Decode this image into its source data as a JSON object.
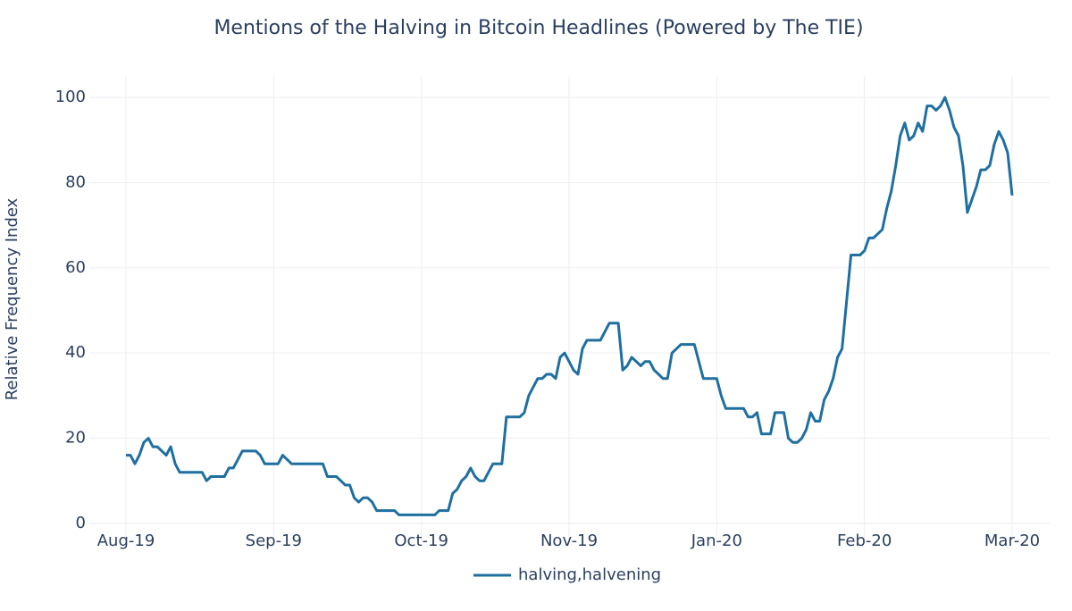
{
  "chart_data": {
    "type": "line",
    "title": "Mentions of the Halving in Bitcoin Headlines (Powered by The TIE)",
    "y_label": "Relative Frequency Index",
    "categories": [
      "Aug-19",
      null,
      null,
      null,
      null,
      null,
      null,
      null,
      null,
      null,
      null,
      null,
      null,
      null,
      null,
      null,
      null,
      null,
      null,
      null,
      null,
      null,
      null,
      null,
      null,
      null,
      null,
      null,
      null,
      null,
      null,
      null,
      null,
      "Sep-19",
      null,
      null,
      null,
      null,
      null,
      null,
      null,
      null,
      null,
      null,
      null,
      null,
      null,
      null,
      null,
      null,
      null,
      null,
      null,
      null,
      null,
      null,
      null,
      null,
      null,
      null,
      null,
      null,
      null,
      null,
      null,
      null,
      "Oct-19",
      null,
      null,
      null,
      null,
      null,
      null,
      null,
      null,
      null,
      null,
      null,
      null,
      null,
      null,
      null,
      null,
      null,
      null,
      null,
      null,
      null,
      null,
      null,
      null,
      null,
      null,
      null,
      null,
      null,
      null,
      null,
      null,
      "Nov-19",
      null,
      null,
      null,
      null,
      null,
      null,
      null,
      null,
      null,
      null,
      null,
      null,
      null,
      null,
      null,
      null,
      null,
      null,
      null,
      null,
      null,
      null,
      null,
      null,
      null,
      null,
      null,
      null,
      null,
      null,
      null,
      null,
      "Jan-20",
      null,
      null,
      null,
      null,
      null,
      null,
      null,
      null,
      null,
      null,
      null,
      null,
      null,
      null,
      null,
      null,
      null,
      null,
      null,
      null,
      null,
      null,
      null,
      null,
      null,
      null,
      null,
      null,
      null,
      null,
      null,
      null,
      "Feb-20",
      null,
      null,
      null,
      null,
      null,
      null,
      null,
      null,
      null,
      null,
      null,
      null,
      null,
      null,
      null,
      null,
      null,
      null,
      null,
      null,
      null,
      null,
      null,
      null,
      null,
      null,
      null,
      null,
      null,
      null,
      null,
      null,
      "Mar-20"
    ],
    "series": [
      {
        "name": "halving,halvening",
        "color": "#1f6fa0",
        "values": [
          16,
          16,
          14,
          16,
          19,
          20,
          18,
          18,
          17,
          16,
          18,
          14,
          12,
          12,
          12,
          12,
          12,
          12,
          10,
          11,
          11,
          11,
          11,
          13,
          13,
          15,
          17,
          17,
          17,
          17,
          16,
          14,
          14,
          14,
          14,
          16,
          15,
          14,
          14,
          14,
          14,
          14,
          14,
          14,
          14,
          11,
          11,
          11,
          10,
          9,
          9,
          6,
          5,
          6,
          6,
          5,
          3,
          3,
          3,
          3,
          3,
          2,
          2,
          2,
          2,
          2,
          2,
          2,
          2,
          2,
          3,
          3,
          3,
          7,
          8,
          10,
          11,
          13,
          11,
          10,
          10,
          12,
          14,
          14,
          14,
          25,
          25,
          25,
          25,
          26,
          30,
          32,
          34,
          34,
          35,
          35,
          34,
          39,
          40,
          38,
          36,
          35,
          41,
          43,
          43,
          43,
          43,
          45,
          47,
          47,
          47,
          36,
          37,
          39,
          38,
          37,
          38,
          38,
          36,
          35,
          34,
          34,
          40,
          41,
          42,
          42,
          42,
          42,
          38,
          34,
          34,
          34,
          34,
          30,
          27,
          27,
          27,
          27,
          27,
          25,
          25,
          26,
          21,
          21,
          21,
          26,
          26,
          26,
          20,
          19,
          19,
          20,
          22,
          26,
          24,
          24,
          29,
          31,
          34,
          39,
          41,
          52,
          63,
          63,
          63,
          64,
          67,
          67,
          68,
          69,
          74,
          78,
          84,
          91,
          94,
          90,
          91,
          94,
          92,
          98,
          98,
          97,
          98,
          100,
          97,
          93,
          91,
          84,
          73,
          76,
          79,
          83,
          83,
          84,
          89,
          92,
          90,
          87,
          77
        ]
      }
    ],
    "ylim": [
      -4,
      104
    ],
    "yticks": [
      0,
      20,
      40,
      60,
      80,
      100
    ],
    "grid": true,
    "legend": "bottom"
  }
}
